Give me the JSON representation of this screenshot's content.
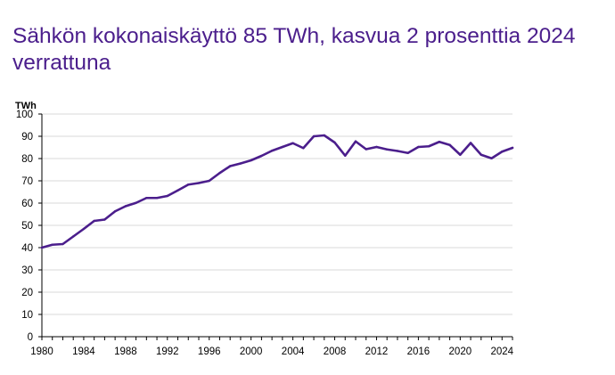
{
  "title": {
    "line1": "Sähkön kokonaiskäyttö 85 TWh, kasvua 2 prosenttia 2024",
    "line2": "verrattuna"
  },
  "chart_data": {
    "type": "line",
    "ylabel": "TWh",
    "xlabel": "",
    "xlim": [
      1980,
      2025
    ],
    "ylim": [
      0,
      100
    ],
    "y_ticks": [
      0,
      10,
      20,
      30,
      40,
      50,
      60,
      70,
      80,
      90,
      100
    ],
    "x_ticks": [
      1980,
      1984,
      1988,
      1992,
      1996,
      2000,
      2004,
      2008,
      2012,
      2016,
      2020,
      2024
    ],
    "grid": "horizontal",
    "line_color": "#4b1e8c",
    "grid_color": "#d9d9d9",
    "series": [
      {
        "x": [
          1980,
          1981,
          1982,
          1983,
          1984,
          1985,
          1986,
          1987,
          1988,
          1989,
          1990,
          1991,
          1992,
          1993,
          1994,
          1995,
          1996,
          1997,
          1998,
          1999,
          2000,
          2001,
          2002,
          2003,
          2004,
          2005,
          2006,
          2007,
          2008,
          2009,
          2010,
          2011,
          2012,
          2013,
          2014,
          2015,
          2016,
          2017,
          2018,
          2019,
          2020,
          2021,
          2022,
          2023,
          2024,
          2025
        ],
        "values": [
          40.0,
          41.3,
          41.6,
          45.0,
          48.4,
          52.0,
          52.6,
          56.3,
          58.6,
          60.1,
          62.3,
          62.3,
          63.2,
          65.7,
          68.3,
          69.0,
          70.0,
          73.5,
          76.6,
          77.8,
          79.2,
          81.2,
          83.5,
          85.2,
          86.9,
          84.7,
          90.0,
          90.4,
          87.2,
          81.3,
          87.7,
          84.2,
          85.2,
          84.1,
          83.4,
          82.5,
          85.2,
          85.5,
          87.5,
          86.1,
          81.7,
          87.0,
          81.7,
          80.1,
          83.1,
          84.8
        ]
      }
    ]
  }
}
